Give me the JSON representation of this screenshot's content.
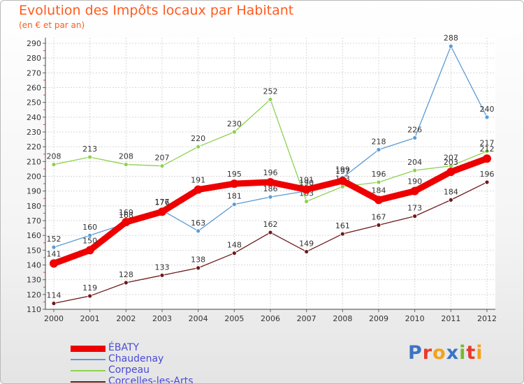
{
  "page": {
    "title": "Evolution des Impôts locaux par Habitant",
    "subtitle": "(en € et par an)"
  },
  "logo": {
    "text": "Proxiti",
    "colors": [
      "#3b74c4",
      "#e83a2c",
      "#f4a21c",
      "#3b74c4",
      "#7ab82e",
      "#e83a2c",
      "#f4a21c"
    ]
  },
  "chart_data": {
    "type": "line",
    "x": [
      "2000",
      "2001",
      "2002",
      "2003",
      "2004",
      "2005",
      "2006",
      "2007",
      "2008",
      "2009",
      "2010",
      "2011",
      "2012"
    ],
    "ylim": [
      110,
      290
    ],
    "yticks": [
      110,
      120,
      130,
      140,
      150,
      160,
      170,
      180,
      190,
      200,
      210,
      220,
      230,
      240,
      250,
      260,
      270,
      280,
      290
    ],
    "grid": true,
    "legend": "bottom-left",
    "series": [
      {
        "name": "Corcelles-les-Arts",
        "color": "#6e1a1a",
        "values": [
          114,
          119,
          128,
          133,
          138,
          148,
          162,
          149,
          161,
          167,
          173,
          184,
          196
        ],
        "labels": [
          "114",
          "119",
          "128",
          "133",
          "138",
          "148",
          "162",
          "149",
          "161",
          "167",
          "173",
          "184",
          "196"
        ]
      },
      {
        "name": "Corpeau",
        "color": "#8ed14f",
        "values": [
          208,
          213,
          208,
          207,
          220,
          230,
          252,
          183,
          193,
          196,
          204,
          207,
          217
        ],
        "labels": [
          "208",
          "213",
          "208",
          "207",
          "220",
          "230",
          "252",
          "183",
          "193",
          "196",
          "204",
          "207",
          "217"
        ]
      },
      {
        "name": "Chaudenay",
        "color": "#5b9bd5",
        "values": [
          152,
          160,
          168,
          177,
          163,
          181,
          186,
          190,
          199,
          218,
          226,
          288,
          240
        ],
        "labels": [
          "152",
          "160",
          "168",
          "177",
          "163",
          "181",
          "186",
          "190",
          "199",
          "218",
          "226",
          "288",
          "240"
        ]
      },
      {
        "name": "ÉBATY",
        "color": "#ee0000",
        "values": [
          141,
          150,
          169,
          176,
          191,
          195,
          196,
          191,
          197,
          184,
          190,
          203,
          212
        ],
        "labels": [
          "141",
          "150",
          "169",
          "176",
          "191",
          "195",
          "196",
          "191",
          "197",
          "184",
          "190",
          "203",
          "212"
        ]
      }
    ],
    "legend_order": [
      "ÉBATY",
      "Chaudenay",
      "Corpeau",
      "Corcelles-les-Arts"
    ]
  }
}
